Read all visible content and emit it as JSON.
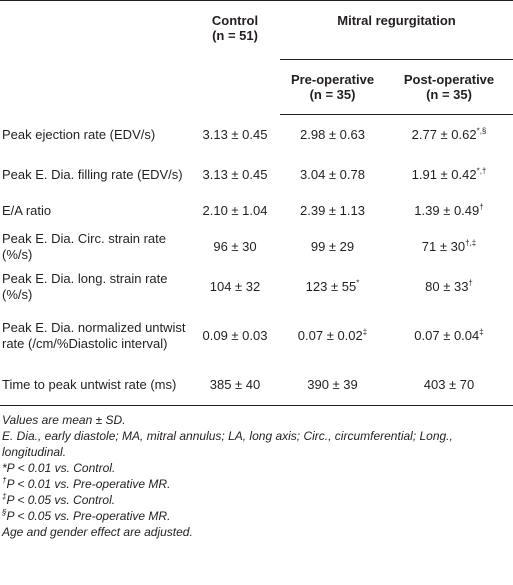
{
  "table": {
    "header": {
      "control": {
        "title": "Control",
        "n": "(n = 51)"
      },
      "group": "Mitral regurgitation",
      "pre": {
        "title": "Pre-operative",
        "n": "(n = 35)"
      },
      "post": {
        "title": "Post-operative",
        "n": "(n = 35)"
      }
    },
    "rows": [
      [
        {
          "text": "Peak ejection rate (EDV/s)"
        },
        {
          "text": "3.13 ± 0.45"
        },
        {
          "text": "2.98 ± 0.63"
        },
        {
          "text": "2.77 ± 0.62",
          "sup": "*,§"
        }
      ],
      [
        {
          "text": "Peak E. Dia. filling rate (EDV/s)"
        },
        {
          "text": "3.13 ± 0.45"
        },
        {
          "text": "3.04 ± 0.78"
        },
        {
          "text": "1.91 ± 0.42",
          "sup": "*,†"
        }
      ],
      [
        {
          "text": "E/A ratio"
        },
        {
          "text": "2.10 ± 1.04"
        },
        {
          "text": "2.39 ± 1.13"
        },
        {
          "text": "1.39 ± 0.49",
          "sup": "†"
        }
      ],
      [
        {
          "text": "Peak E. Dia. Circ. strain rate (%/s)"
        },
        {
          "text": "96 ± 30"
        },
        {
          "text": "99 ± 29"
        },
        {
          "text": "71 ± 30",
          "sup": "†,‡"
        }
      ],
      [
        {
          "text": "Peak E. Dia. long. strain rate (%/s)"
        },
        {
          "text": "104 ± 32"
        },
        {
          "text": "123 ± 55",
          "sup": "*"
        },
        {
          "text": "80 ± 33",
          "sup": "†"
        }
      ],
      [
        {
          "text": "Peak E. Dia. normalized untwist rate (/cm/%Diastolic interval)"
        },
        {
          "text": "0.09 ± 0.03"
        },
        {
          "text": "0.07 ± 0.02",
          "sup": "‡"
        },
        {
          "text": "0.07 ± 0.04",
          "sup": "‡"
        }
      ],
      [
        {
          "text": "Time to peak untwist rate (ms)"
        },
        {
          "text": "385 ± 40"
        },
        {
          "text": "390 ± 39"
        },
        {
          "text": "403 ± 70"
        }
      ]
    ],
    "notes": [
      {
        "text": "Values are mean ± SD."
      },
      {
        "text": "E. Dia., early diastole; MA, mitral annulus; LA, long axis; Circ., circumferential; Long., longitudinal."
      },
      {
        "text": "*P < 0.01 vs. Control."
      },
      {
        "sup": "†",
        "text": "P < 0.01 vs. Pre-operative MR."
      },
      {
        "sup": "‡",
        "text": "P < 0.05 vs. Control."
      },
      {
        "sup": "§",
        "text": "P < 0.05 vs. Pre-operative MR."
      },
      {
        "text": "Age and gender effect are adjusted."
      }
    ]
  }
}
